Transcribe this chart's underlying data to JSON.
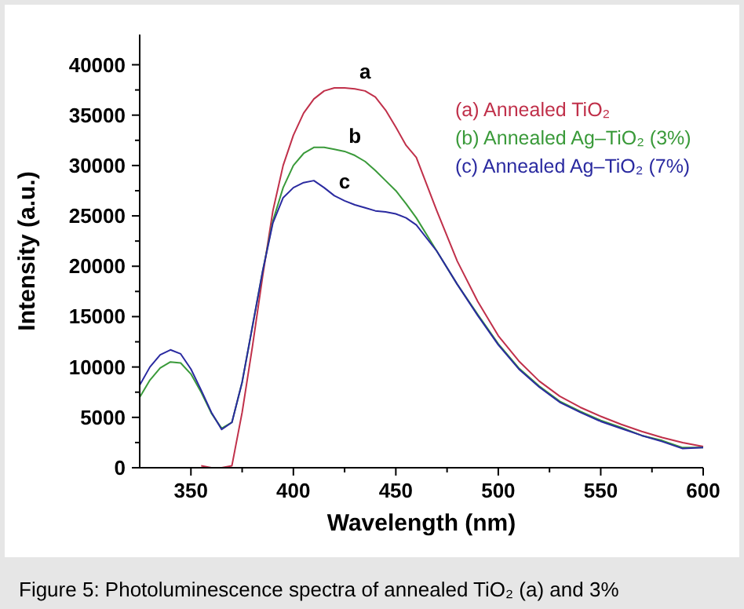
{
  "chart_data": {
    "type": "line",
    "xlabel": "Wavelength (nm)",
    "ylabel": "Intensity (a.u.)",
    "x": [
      325,
      330,
      335,
      340,
      345,
      350,
      355,
      360,
      365,
      370,
      375,
      380,
      385,
      390,
      395,
      400,
      405,
      410,
      415,
      420,
      425,
      430,
      435,
      440,
      445,
      450,
      455,
      460,
      470,
      480,
      490,
      500,
      510,
      520,
      530,
      540,
      550,
      560,
      570,
      580,
      590,
      600
    ],
    "series": [
      {
        "name": "(a) Annealed TiO₂",
        "color": "#c0304a",
        "values": [
          null,
          null,
          null,
          null,
          null,
          null,
          200,
          0,
          0,
          200,
          5500,
          12000,
          19000,
          25500,
          30000,
          33000,
          35200,
          36600,
          37400,
          37700,
          37700,
          37600,
          37400,
          36800,
          35500,
          33800,
          32000,
          30800,
          25500,
          20500,
          16500,
          13100,
          10600,
          8600,
          7100,
          6000,
          5100,
          4300,
          3600,
          3000,
          2500,
          2100
        ]
      },
      {
        "name": "(b) Annealed Ag–TiO₂ (3%)",
        "color": "#3a9a3a",
        "values": [
          7000,
          8700,
          9900,
          10500,
          10400,
          9300,
          7500,
          5400,
          3900,
          4500,
          8500,
          14000,
          19500,
          24500,
          27800,
          30000,
          31200,
          31800,
          31800,
          31600,
          31400,
          31000,
          30400,
          29500,
          28500,
          27500,
          26200,
          24800,
          21500,
          18200,
          15200,
          12300,
          9900,
          8100,
          6600,
          5600,
          4700,
          4000,
          3200,
          2700,
          2000,
          2000
        ]
      },
      {
        "name": "(c) Annealed Ag–TiO₂ (7%)",
        "color": "#2a2aa0",
        "values": [
          8200,
          10000,
          11200,
          11700,
          11300,
          9800,
          7700,
          5500,
          3800,
          4500,
          8500,
          14000,
          19500,
          24300,
          26800,
          27800,
          28300,
          28500,
          27800,
          27000,
          26500,
          26100,
          25800,
          25500,
          25400,
          25200,
          24800,
          24100,
          21500,
          18200,
          15100,
          12200,
          9800,
          8000,
          6500,
          5500,
          4600,
          3900,
          3200,
          2600,
          1900,
          2000
        ]
      }
    ],
    "xlim": [
      325,
      600
    ],
    "xticks": [
      350,
      {
        "value": 375,
        "label": null
      },
      400,
      {
        "value": 425,
        "label": null
      },
      450,
      {
        "value": 475,
        "label": null
      },
      500,
      {
        "value": 525,
        "label": null
      },
      550,
      {
        "value": 575,
        "label": null
      },
      600
    ],
    "ylim": [
      0,
      43000
    ],
    "yticks": [
      0,
      {
        "value": 2500,
        "label": null
      },
      5000,
      {
        "value": 7500,
        "label": null
      },
      10000,
      {
        "value": 12500,
        "label": null
      },
      15000,
      {
        "value": 17500,
        "label": null
      },
      20000,
      {
        "value": 22500,
        "label": null
      },
      25000,
      {
        "value": 27500,
        "label": null
      },
      30000,
      {
        "value": 32500,
        "label": null
      },
      35000,
      {
        "value": 37500,
        "label": null
      },
      40000
    ],
    "legend": "top right",
    "line_style": "solid",
    "annotations": [
      {
        "text": "a",
        "x": 435,
        "y": 37400
      },
      {
        "text": "b",
        "x": 430,
        "y": 31000
      },
      {
        "text": "c",
        "x": 425,
        "y": 26500
      },
      "Figure 5: Photoluminescence spectra of annealed TiO₂ (a) and 3%"
    ]
  }
}
